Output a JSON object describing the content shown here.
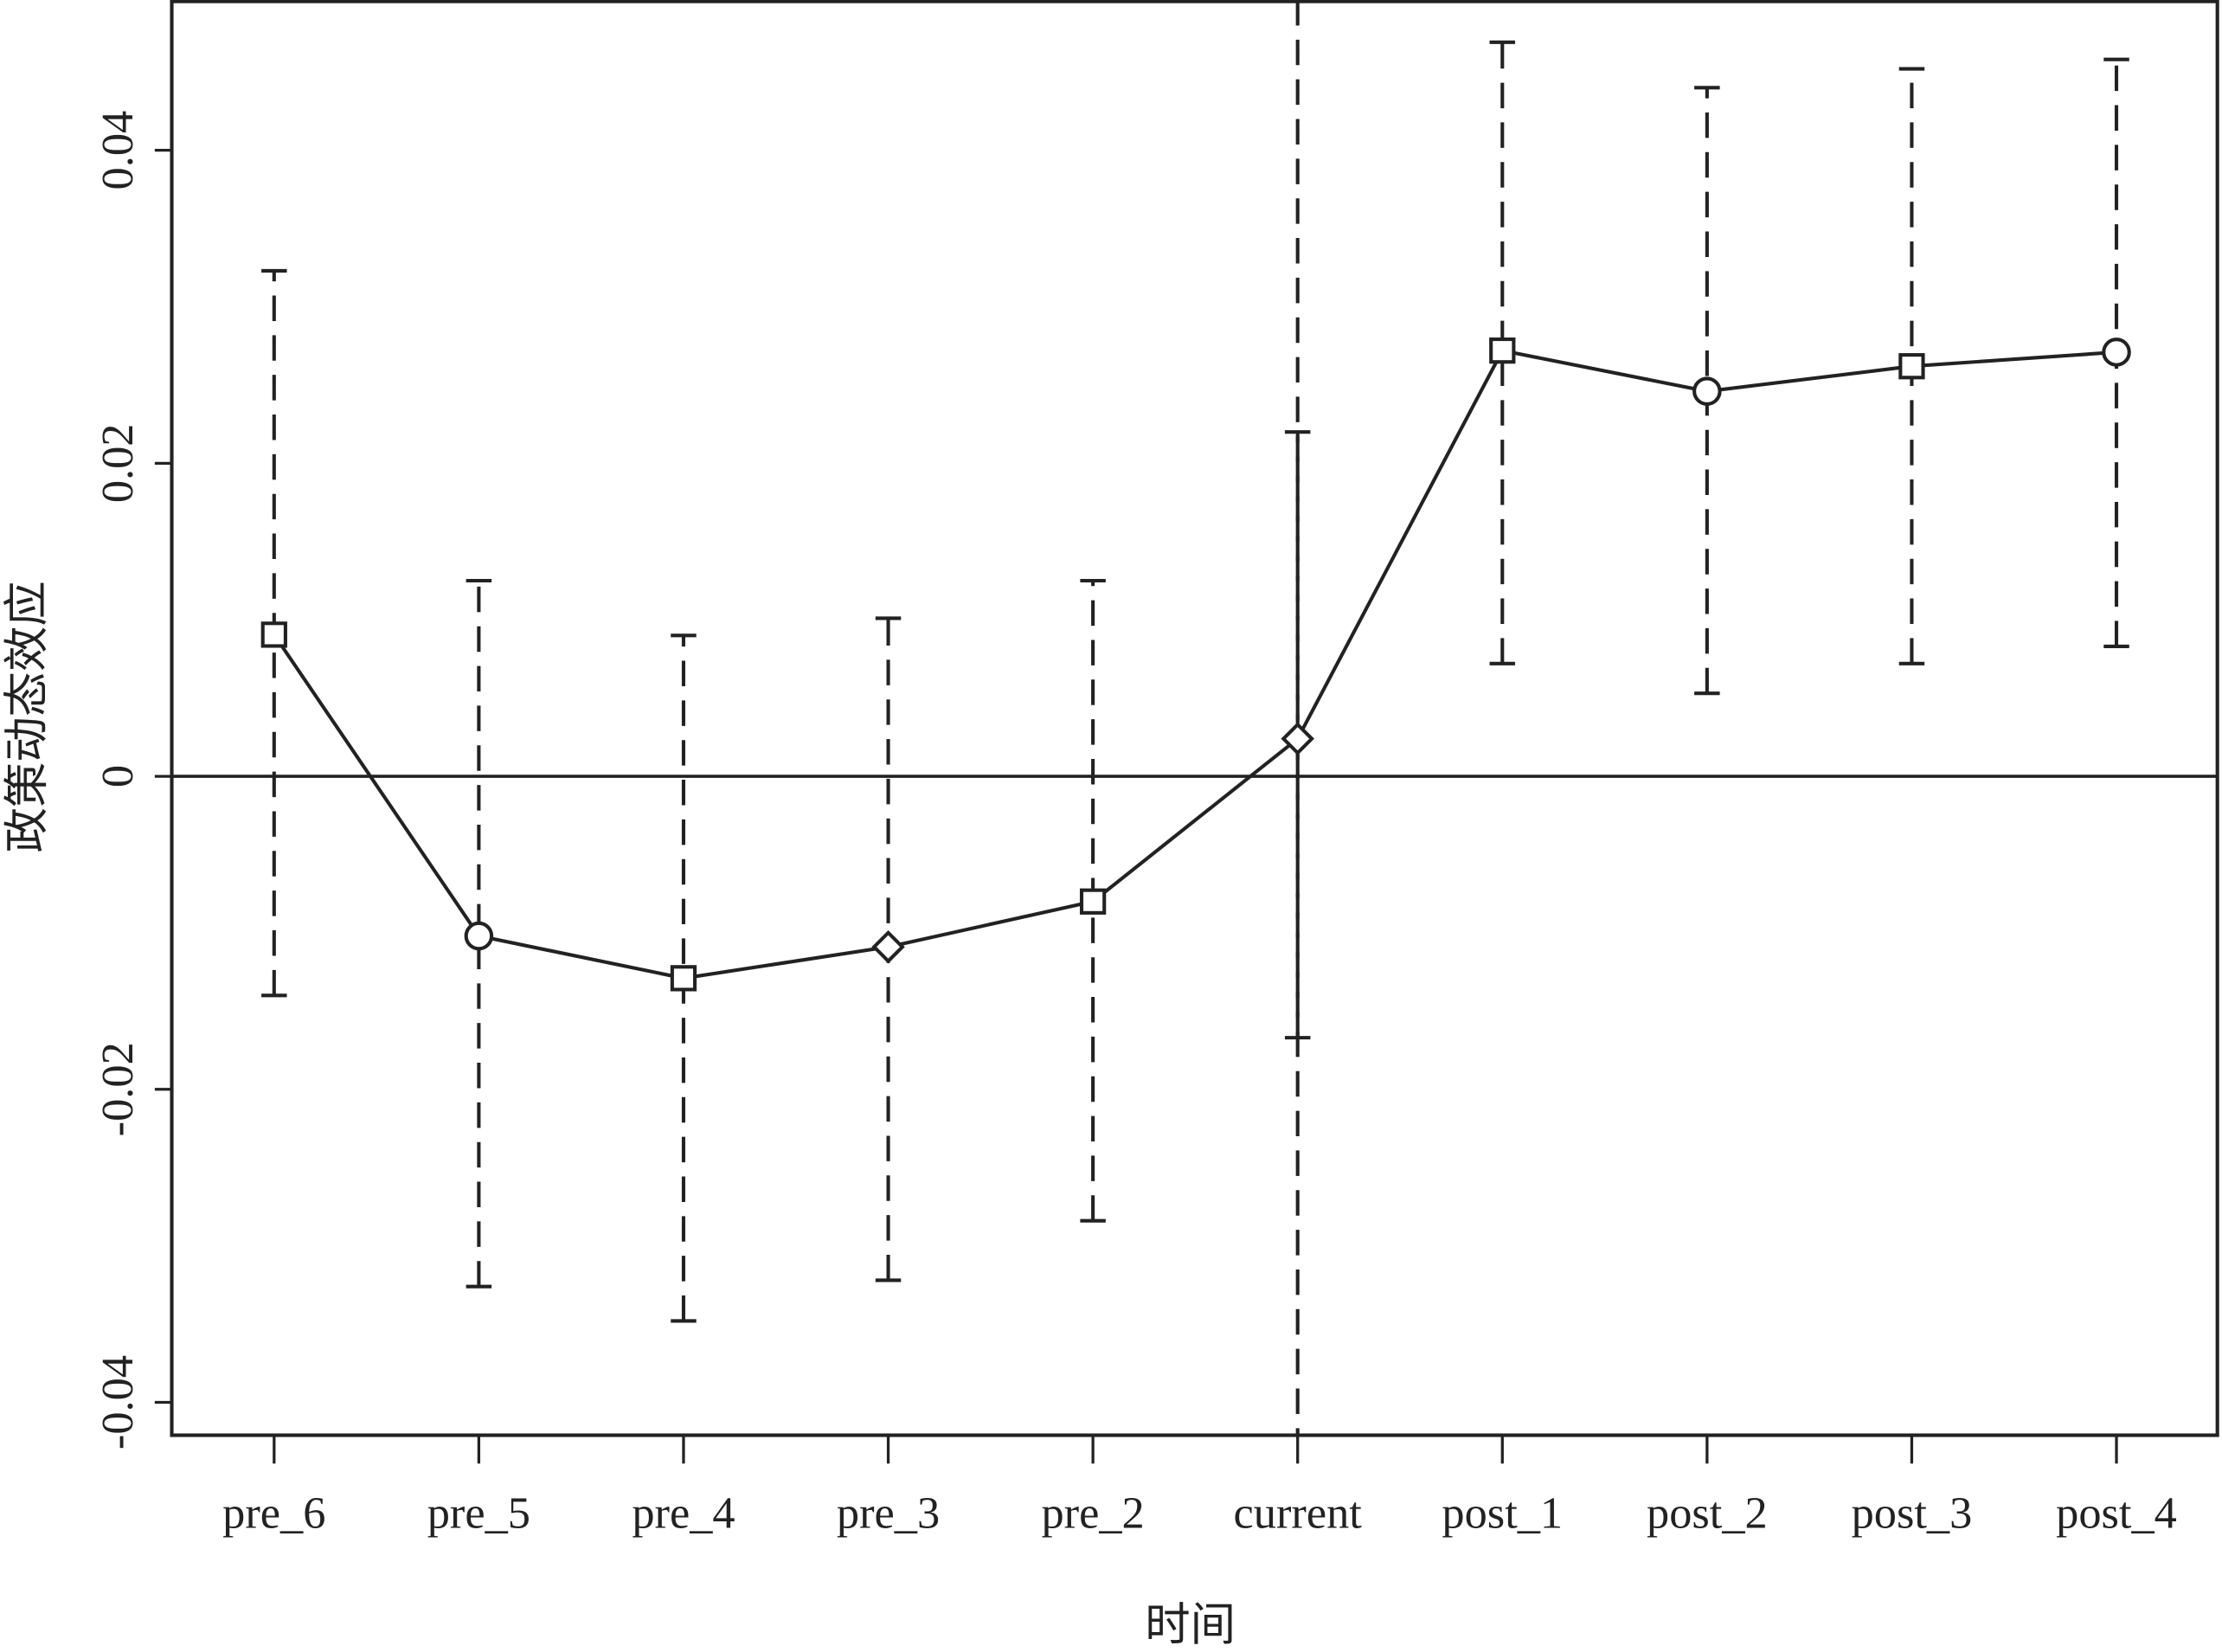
{
  "chart_data": {
    "type": "line",
    "x_label": "时间",
    "y_label": "政策动态效应",
    "categories": [
      "pre_6",
      "pre_5",
      "pre_4",
      "pre_3",
      "pre_2",
      "current",
      "post_1",
      "post_2",
      "post_3",
      "post_4"
    ],
    "values": [
      0.00905,
      -0.0102,
      -0.0129,
      -0.0109,
      -0.008,
      0.0024,
      0.0272,
      0.0246,
      0.0262,
      0.0271
    ],
    "ci_lower": [
      -0.014,
      -0.0326,
      -0.0348,
      -0.0322,
      -0.0284,
      -0.0167,
      0.0072,
      0.0053,
      0.0072,
      0.0083
    ],
    "ci_upper": [
      0.0323,
      0.0125,
      0.009,
      0.0101,
      0.0125,
      0.022,
      0.0469,
      0.044,
      0.0452,
      0.0458
    ],
    "markers": [
      "square",
      "circle",
      "square",
      "diamond",
      "square",
      "diamond",
      "square",
      "circle",
      "square",
      "circle"
    ],
    "color": "#222222",
    "ylim": [
      -0.0421,
      0.0496
    ],
    "yticks": [
      -0.04,
      -0.02,
      0,
      0.02,
      0.04
    ],
    "hline": 0,
    "vline": "current"
  }
}
